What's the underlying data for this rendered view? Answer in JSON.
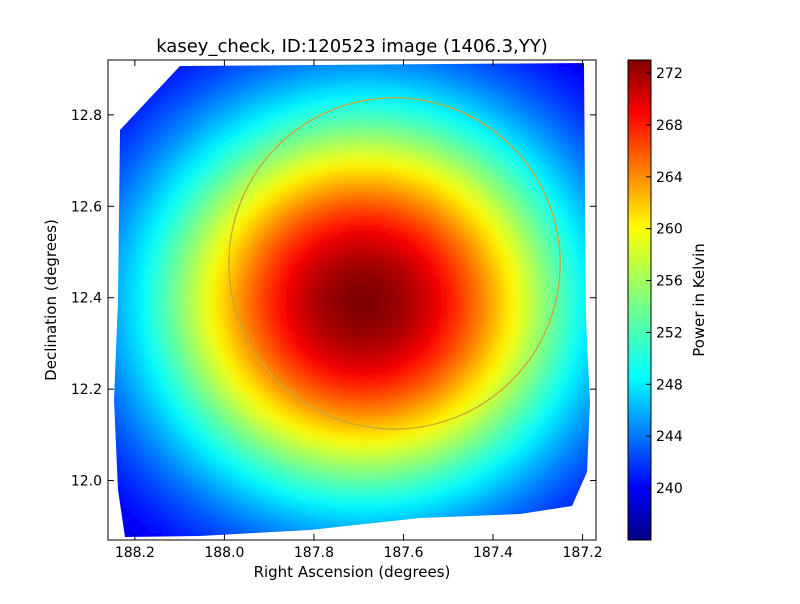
{
  "chart_data": {
    "type": "heatmap",
    "title": "kasey_check, ID:120523 image (1406.3,YY)",
    "xlabel": "Right Ascension (degrees)",
    "ylabel": "Declination (degrees)",
    "colorbar_label": "Power in Kelvin",
    "xlim": [
      188.26,
      187.17
    ],
    "ylim": [
      11.87,
      12.92
    ],
    "x_inverted": true,
    "xticks": [
      188.2,
      188.0,
      187.8,
      187.6,
      187.4,
      187.2
    ],
    "xtick_labels": [
      "188.2",
      "188.0",
      "187.8",
      "187.6",
      "187.4",
      "187.2"
    ],
    "yticks": [
      12.0,
      12.2,
      12.4,
      12.6,
      12.8
    ],
    "ytick_labels": [
      "12.0",
      "12.2",
      "12.4",
      "12.6",
      "12.8"
    ],
    "colorbar_range": [
      236,
      273
    ],
    "colorbar_ticks": [
      240,
      244,
      248,
      252,
      256,
      260,
      264,
      268,
      272
    ],
    "colorbar_tick_labels": [
      "240",
      "244",
      "248",
      "252",
      "256",
      "260",
      "264",
      "268",
      "272"
    ],
    "colormap": "jet",
    "peak": {
      "ra": 187.69,
      "dec": 12.39,
      "value": 273
    },
    "circle": {
      "ra": 187.62,
      "dec": 12.475,
      "radius_deg": 0.37,
      "color": "#c8a832"
    },
    "grid": false
  }
}
